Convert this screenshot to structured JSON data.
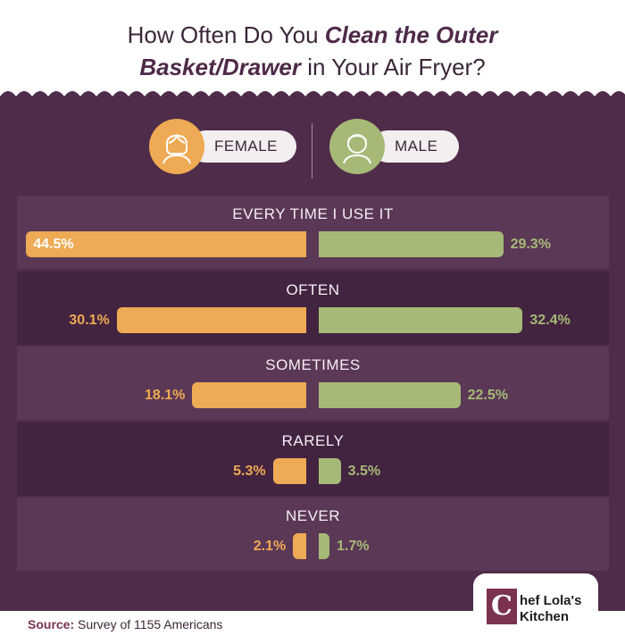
{
  "title": {
    "line1_prefix": "How Often Do You ",
    "line1_emphasis": "Clean the Outer",
    "line2_emphasis": "Basket/Drawer",
    "line2_suffix": " in Your Air Fryer?"
  },
  "legend": {
    "female_label": "FEMALE",
    "male_label": "MALE",
    "female_icon": "woman-avatar-icon",
    "male_icon": "man-avatar-icon"
  },
  "colors": {
    "female": "#eeaa54",
    "male": "#a6b977",
    "background": "#4f2c49",
    "brand": "#7a3250"
  },
  "chart_data": {
    "type": "bar",
    "orientation": "horizontal-diverging",
    "categories": [
      "EVERY TIME I USE IT",
      "OFTEN",
      "SOMETIMES",
      "RARELY",
      "NEVER"
    ],
    "series": [
      {
        "name": "FEMALE",
        "values": [
          44.5,
          30.1,
          18.1,
          5.3,
          2.1
        ],
        "labels": [
          "44.5%",
          "30.1%",
          "18.1%",
          "5.3%",
          "2.1%"
        ]
      },
      {
        "name": "MALE",
        "values": [
          29.3,
          32.4,
          22.5,
          3.5,
          1.7
        ],
        "labels": [
          "29.3%",
          "32.4%",
          "22.5%",
          "3.5%",
          "1.7%"
        ]
      }
    ],
    "unit": "%",
    "grid": false,
    "legend_position": "top-center"
  },
  "source": {
    "label": "Source:",
    "text": " Survey of 1155 Americans"
  },
  "logo": {
    "mark": "C",
    "line1": "hef Lola's",
    "line2": "Kitchen"
  }
}
